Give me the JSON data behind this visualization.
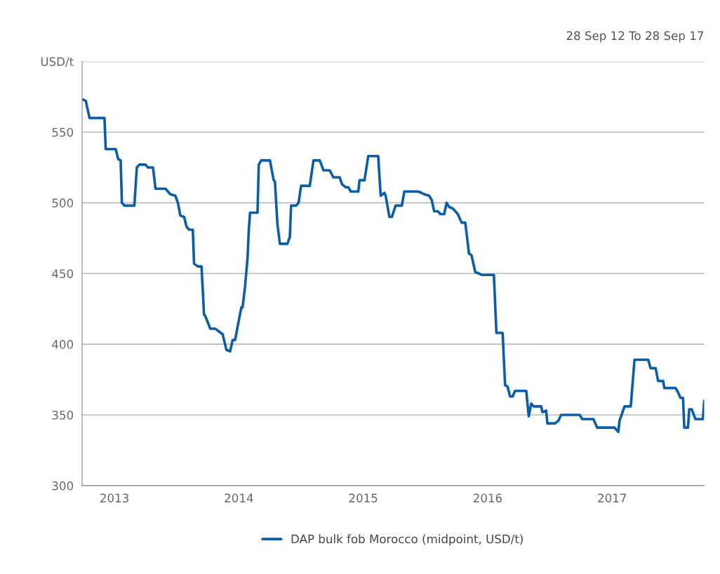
{
  "chart_data": {
    "type": "line",
    "subtitle": "28 Sep 12 To 28 Sep 17",
    "x": [
      2012.75,
      2012.77,
      2012.8,
      2012.92,
      2012.93,
      2013.01,
      2013.03,
      2013.05,
      2013.06,
      2013.08,
      2013.16,
      2013.18,
      2013.2,
      2013.25,
      2013.27,
      2013.31,
      2013.33,
      2013.41,
      2013.45,
      2013.49,
      2013.51,
      2013.53,
      2013.56,
      2013.58,
      2013.6,
      2013.63,
      2013.64,
      2013.67,
      2013.7,
      2013.72,
      2013.73,
      2013.77,
      2013.81,
      2013.84,
      2013.87,
      2013.9,
      2013.93,
      2013.95,
      2013.97,
      2014.0,
      2014.02,
      2014.03,
      2014.05,
      2014.07,
      2014.08,
      2014.09,
      2014.15,
      2014.16,
      2014.18,
      2014.25,
      2014.28,
      2014.29,
      2014.31,
      2014.33,
      2014.39,
      2014.41,
      2014.42,
      2014.46,
      2014.48,
      2014.5,
      2014.57,
      2014.6,
      2014.65,
      2014.68,
      2014.73,
      2014.76,
      2014.81,
      2014.83,
      2014.86,
      2014.88,
      2014.9,
      2014.96,
      2014.97,
      2015.01,
      2015.04,
      2015.12,
      2015.14,
      2015.17,
      2015.18,
      2015.21,
      2015.23,
      2015.26,
      2015.31,
      2015.33,
      2015.44,
      2015.47,
      2015.49,
      2015.53,
      2015.55,
      2015.57,
      2015.6,
      2015.62,
      2015.65,
      2015.67,
      2015.69,
      2015.72,
      2015.76,
      2015.79,
      2015.82,
      2015.85,
      2015.87,
      2015.9,
      2015.93,
      2015.95,
      2016.05,
      2016.07,
      2016.12,
      2016.14,
      2016.16,
      2016.18,
      2016.2,
      2016.22,
      2016.31,
      2016.33,
      2016.35,
      2016.37,
      2016.43,
      2016.44,
      2016.47,
      2016.48,
      2016.54,
      2016.57,
      2016.59,
      2016.74,
      2016.76,
      2016.85,
      2016.88,
      2017.02,
      2017.05,
      2017.06,
      2017.1,
      2017.15,
      2017.18,
      2017.29,
      2017.31,
      2017.35,
      2017.37,
      2017.41,
      2017.42,
      2017.51,
      2017.53,
      2017.55,
      2017.57,
      2017.58,
      2017.61,
      2017.62,
      2017.64,
      2017.67,
      2017.73,
      2017.74
    ],
    "series": [
      {
        "name": "DAP bulk fob Morocco (midpoint, USD/t)",
        "color": "#0a5ea8",
        "values": [
          573,
          572,
          560,
          560,
          538,
          538,
          531,
          530,
          500,
          498,
          498,
          525,
          527,
          527,
          525,
          525,
          510,
          510,
          506,
          505,
          500,
          491,
          490,
          483,
          481,
          481,
          457,
          455,
          455,
          421,
          420,
          411,
          411,
          409,
          407,
          396,
          395,
          403,
          403,
          417,
          426,
          426,
          441,
          461,
          481,
          493,
          493,
          527,
          530,
          530,
          516,
          515,
          485,
          471,
          471,
          476,
          498,
          498,
          500,
          512,
          512,
          530,
          530,
          523,
          523,
          518,
          518,
          513,
          511,
          511,
          508,
          508,
          516,
          516,
          533,
          533,
          505,
          507,
          505,
          490,
          490,
          498,
          498,
          508,
          508,
          507,
          506,
          505,
          502,
          494,
          494,
          492,
          492,
          500,
          497,
          496,
          492,
          486,
          486,
          464,
          463,
          451,
          450,
          449,
          449,
          408,
          408,
          371,
          370,
          363,
          363,
          367,
          367,
          349,
          358,
          356,
          356,
          352,
          353,
          344,
          344,
          346,
          350,
          350,
          347,
          347,
          341,
          341,
          338,
          346,
          356,
          356,
          389,
          389,
          383,
          383,
          374,
          374,
          369,
          369,
          366,
          362,
          362,
          341,
          341,
          354,
          354,
          347,
          347,
          360
        ]
      }
    ],
    "xlim": [
      2012.74,
      2017.74
    ],
    "xticks": [
      2013,
      2014,
      2015,
      2016,
      2017
    ],
    "ylim": [
      300,
      600
    ],
    "yticks": [
      300,
      350,
      400,
      450,
      500,
      550,
      {
        "value": 600,
        "label": "USD/t"
      }
    ],
    "grid": "y",
    "legend": "bottom",
    "marker": "none",
    "line_style": "solid"
  }
}
